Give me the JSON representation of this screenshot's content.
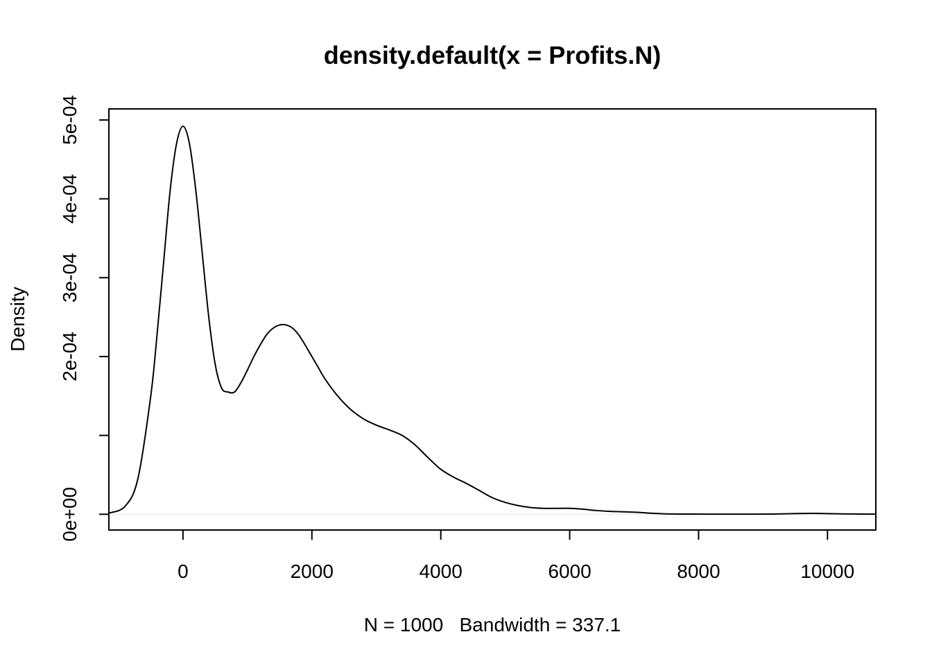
{
  "chart_data": {
    "type": "line",
    "title": "density.default(x = Profits.N)",
    "xlabel": "N = 1000   Bandwidth = 337.1",
    "ylabel": "Density",
    "xlim": [
      -1150,
      10750
    ],
    "ylim": [
      -2e-05,
      0.000514
    ],
    "x_ticks": [
      0,
      2000,
      4000,
      6000,
      8000,
      10000
    ],
    "x_tick_labels": [
      "0",
      "2000",
      "4000",
      "6000",
      "8000",
      "10000"
    ],
    "y_ticks": [
      0,
      0.0001,
      0.0002,
      0.0003,
      0.0004,
      0.0005
    ],
    "y_tick_labels": [
      "0e+00",
      "",
      "2e-04",
      "3e-04",
      "4e-04",
      "5e-04"
    ],
    "grid": false,
    "zero_line": true,
    "series": [
      {
        "color": "#000000",
        "x": [
          -1150,
          -900,
          -700,
          -500,
          -400,
          -300,
          -200,
          -100,
          0,
          100,
          200,
          300,
          400,
          500,
          600,
          700,
          800,
          900,
          1000,
          1100,
          1200,
          1300,
          1400,
          1500,
          1600,
          1700,
          1800,
          1900,
          2000,
          2100,
          2200,
          2400,
          2600,
          2800,
          3000,
          3200,
          3400,
          3600,
          3800,
          4000,
          4200,
          4400,
          4600,
          4800,
          5000,
          5200,
          5400,
          5600,
          5800,
          6000,
          6200,
          6400,
          6600,
          6800,
          7000,
          7200,
          7400,
          7600,
          7800,
          8000,
          8400,
          8800,
          9200,
          9600,
          9800,
          10000,
          10400,
          10750
        ],
        "y": [
          1.5e-06,
          1e-05,
          4.5e-05,
          0.00015,
          0.00023,
          0.00032,
          0.00041,
          0.00047,
          0.000492,
          0.00047,
          0.00041,
          0.00033,
          0.00025,
          0.00019,
          0.00016,
          0.000155,
          0.000155,
          0.000167,
          0.000183,
          0.0002,
          0.000215,
          0.000228,
          0.000236,
          0.00024,
          0.00024,
          0.000236,
          0.000227,
          0.000214,
          0.0002,
          0.000186,
          0.000172,
          0.00015,
          0.000133,
          0.000121,
          0.000113,
          0.000107,
          0.0001,
          8.8e-05,
          7.2e-05,
          5.7e-05,
          4.7e-05,
          3.9e-05,
          3e-05,
          2.1e-05,
          1.5e-05,
          1.1e-05,
          8.5e-06,
          7.5e-06,
          7.5e-06,
          7.5e-06,
          6.5e-06,
          4.8e-06,
          3.8e-06,
          3.2e-06,
          2.6e-06,
          1.6e-06,
          8e-07,
          3e-07,
          2e-07,
          2e-07,
          1e-07,
          1e-07,
          3e-07,
          1e-06,
          1.1e-06,
          8e-07,
          3e-07,
          1e-07
        ]
      }
    ]
  }
}
